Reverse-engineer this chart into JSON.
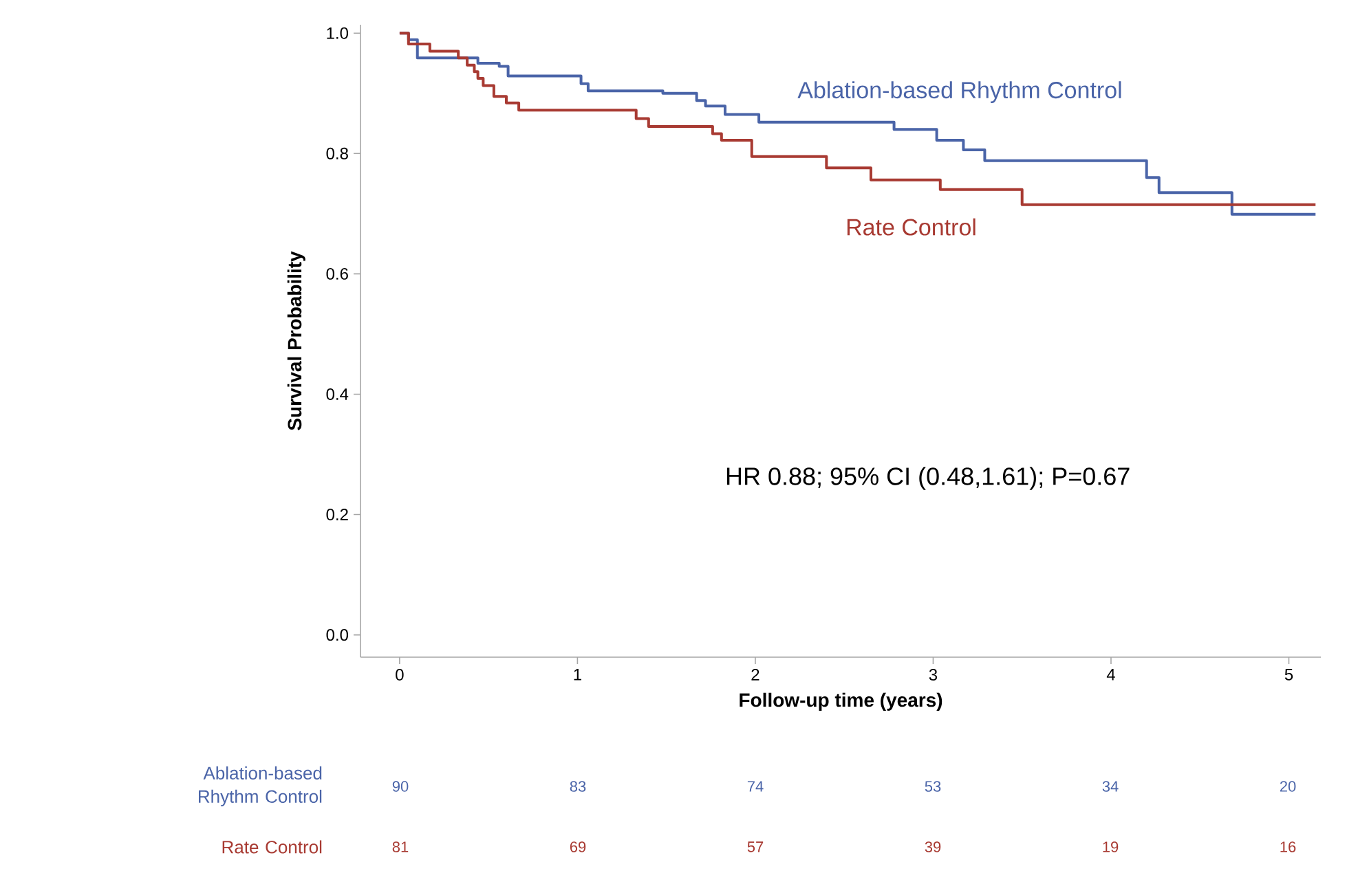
{
  "chart_data": {
    "type": "step",
    "xlabel": "Follow-up time (years)",
    "ylabel": "Survival Probability",
    "xlim": [
      -0.22,
      5.18
    ],
    "ylim": [
      -0.037,
      1.014
    ],
    "xticks": [
      0,
      1,
      2,
      3,
      4,
      5
    ],
    "yticks": [
      {
        "value": 0,
        "label": "0.0"
      },
      {
        "value": 0.2,
        "label": "0.2"
      },
      {
        "value": 0.4,
        "label": "0.4"
      },
      {
        "value": 0.6,
        "label": "0.6"
      },
      {
        "value": 0.8,
        "label": "0.8"
      },
      {
        "value": 1.0,
        "label": "1.0"
      }
    ],
    "series": [
      {
        "name": "Ablation-based Rhythm Control",
        "color": "#4a64a8",
        "x": [
          0,
          0.05,
          0.1,
          0.44,
          0.56,
          0.61,
          1.02,
          1.06,
          1.48,
          1.67,
          1.72,
          1.83,
          2.02,
          2.78,
          3.02,
          3.17,
          3.29,
          4.2,
          4.27,
          4.68,
          5.15
        ],
        "values": [
          1.0,
          0.989,
          0.959,
          0.95,
          0.945,
          0.929,
          0.916,
          0.904,
          0.9,
          0.888,
          0.879,
          0.865,
          0.852,
          0.84,
          0.822,
          0.806,
          0.788,
          0.76,
          0.735,
          0.699,
          0.699
        ]
      },
      {
        "name": "Rate Control",
        "color": "#a83a32",
        "x": [
          0,
          0.05,
          0.17,
          0.33,
          0.38,
          0.42,
          0.44,
          0.47,
          0.53,
          0.6,
          0.67,
          1.33,
          1.4,
          1.76,
          1.81,
          1.98,
          2.4,
          2.65,
          3.04,
          3.5,
          5.15
        ],
        "values": [
          1.0,
          0.982,
          0.97,
          0.959,
          0.947,
          0.936,
          0.925,
          0.913,
          0.895,
          0.884,
          0.872,
          0.858,
          0.845,
          0.833,
          0.822,
          0.795,
          0.776,
          0.756,
          0.74,
          0.715,
          0.715
        ]
      }
    ],
    "annotations": [
      "HR 0.88; 95% CI (0.48,1.61); P=0.67",
      "Ablation-based Rhythm Control",
      "90",
      "83",
      "74",
      "53",
      "34",
      "20",
      "Rate Control",
      "81",
      "69",
      "57",
      "39",
      "19",
      "16"
    ]
  }
}
